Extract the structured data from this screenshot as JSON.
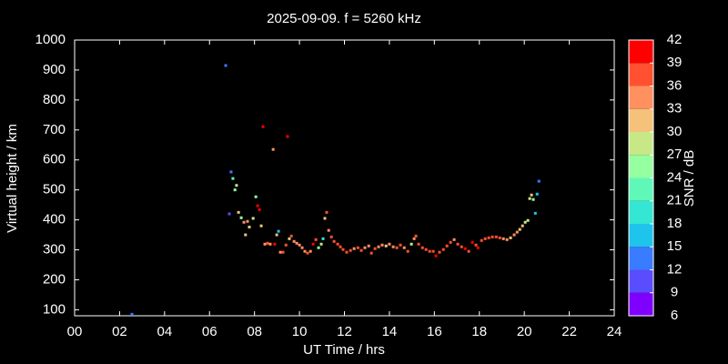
{
  "chart_data": {
    "type": "scatter",
    "title": "2025-09-09. f = 5260 kHz",
    "x_label": "UT Time / hrs",
    "y_label": "Virtual height / km",
    "xlim": [
      0,
      24
    ],
    "ylim": [
      80,
      1000
    ],
    "xticks": [
      {
        "value": 0,
        "label": "00"
      },
      {
        "value": 2,
        "label": "02"
      },
      {
        "value": 4,
        "label": "04"
      },
      {
        "value": 6,
        "label": "06"
      },
      {
        "value": 8,
        "label": "08"
      },
      {
        "value": 10,
        "label": "10"
      },
      {
        "value": 12,
        "label": "12"
      },
      {
        "value": 14,
        "label": "14"
      },
      {
        "value": 16,
        "label": "16"
      },
      {
        "value": 18,
        "label": "18"
      },
      {
        "value": 20,
        "label": "20"
      },
      {
        "value": 22,
        "label": "22"
      },
      {
        "value": 24,
        "label": "24"
      }
    ],
    "yticks": [
      100,
      200,
      300,
      400,
      500,
      600,
      700,
      800,
      900,
      1000
    ],
    "colorbar": {
      "label": "SNR / dB",
      "ticks": [
        6,
        9,
        12,
        15,
        18,
        21,
        24,
        27,
        30,
        33,
        36,
        39,
        42
      ],
      "colors": [
        "#8000ff",
        "#5a4cff",
        "#3a7cff",
        "#1ec4ec",
        "#34e6d4",
        "#60f8b8",
        "#96ffa0",
        "#c8e888",
        "#f4c27a",
        "#ff9060",
        "#ff5030",
        "#ff0000"
      ]
    },
    "x": [
      2.55,
      6.72,
      6.88,
      6.96,
      7.04,
      7.13,
      7.2,
      7.29,
      7.41,
      7.53,
      7.6,
      7.69,
      7.77,
      7.94,
      8.06,
      8.14,
      8.22,
      8.3,
      8.38,
      8.46,
      8.58,
      8.7,
      8.83,
      8.9,
      8.99,
      9.07,
      9.15,
      9.27,
      9.4,
      9.47,
      9.55,
      9.64,
      9.76,
      9.88,
      10.0,
      10.12,
      10.24,
      10.36,
      10.49,
      10.61,
      10.73,
      10.85,
      10.97,
      11.05,
      11.13,
      11.21,
      11.3,
      11.42,
      11.54,
      11.7,
      11.82,
      11.94,
      12.1,
      12.27,
      12.43,
      12.6,
      12.75,
      12.91,
      13.08,
      13.2,
      13.36,
      13.52,
      13.68,
      13.85,
      14.0,
      14.17,
      14.33,
      14.49,
      14.66,
      14.82,
      14.98,
      15.1,
      15.18,
      15.3,
      15.47,
      15.63,
      15.79,
      15.95,
      16.07,
      16.23,
      16.4,
      16.56,
      16.72,
      16.88,
      17.04,
      17.21,
      17.37,
      17.53,
      17.69,
      17.85,
      17.94,
      18.1,
      18.26,
      18.42,
      18.58,
      18.75,
      18.91,
      19.07,
      19.23,
      19.39,
      19.55,
      19.68,
      19.8,
      19.92,
      20.04,
      20.16,
      20.24,
      20.32,
      20.4,
      20.49,
      20.57,
      20.65
    ],
    "y": [
      85,
      915,
      420,
      560,
      538,
      500,
      515,
      425,
      407,
      392,
      350,
      395,
      376,
      405,
      477,
      447,
      434,
      380,
      711,
      319,
      322,
      319,
      635,
      319,
      350,
      362,
      292,
      292,
      316,
      678,
      337,
      346,
      328,
      322,
      316,
      307,
      295,
      289,
      295,
      319,
      334,
      307,
      319,
      337,
      405,
      425,
      365,
      343,
      328,
      319,
      310,
      301,
      292,
      298,
      304,
      307,
      298,
      307,
      313,
      289,
      304,
      310,
      316,
      313,
      319,
      310,
      307,
      316,
      307,
      295,
      319,
      337,
      346,
      319,
      307,
      301,
      295,
      295,
      280,
      292,
      301,
      313,
      325,
      334,
      319,
      310,
      304,
      295,
      325,
      316,
      307,
      331,
      337,
      340,
      343,
      343,
      340,
      337,
      334,
      340,
      350,
      359,
      368,
      380,
      392,
      398,
      471,
      483,
      468,
      422,
      486,
      529
    ],
    "snr": [
      12,
      12,
      9,
      12,
      21,
      24,
      27,
      30,
      24,
      33,
      30,
      33,
      30,
      27,
      24,
      39,
      39,
      30,
      39,
      33,
      36,
      33,
      33,
      39,
      30,
      15,
      33,
      36,
      36,
      39,
      30,
      36,
      33,
      33,
      33,
      33,
      33,
      36,
      33,
      39,
      36,
      24,
      27,
      18,
      30,
      36,
      33,
      36,
      36,
      36,
      36,
      36,
      36,
      36,
      33,
      36,
      36,
      33,
      33,
      36,
      36,
      33,
      33,
      30,
      33,
      33,
      36,
      36,
      33,
      36,
      27,
      33,
      36,
      36,
      36,
      36,
      36,
      36,
      39,
      36,
      36,
      36,
      36,
      33,
      36,
      36,
      39,
      36,
      39,
      36,
      39,
      36,
      36,
      36,
      36,
      36,
      36,
      33,
      33,
      30,
      33,
      33,
      30,
      30,
      27,
      27,
      27,
      30,
      24,
      15,
      15,
      12
    ]
  }
}
